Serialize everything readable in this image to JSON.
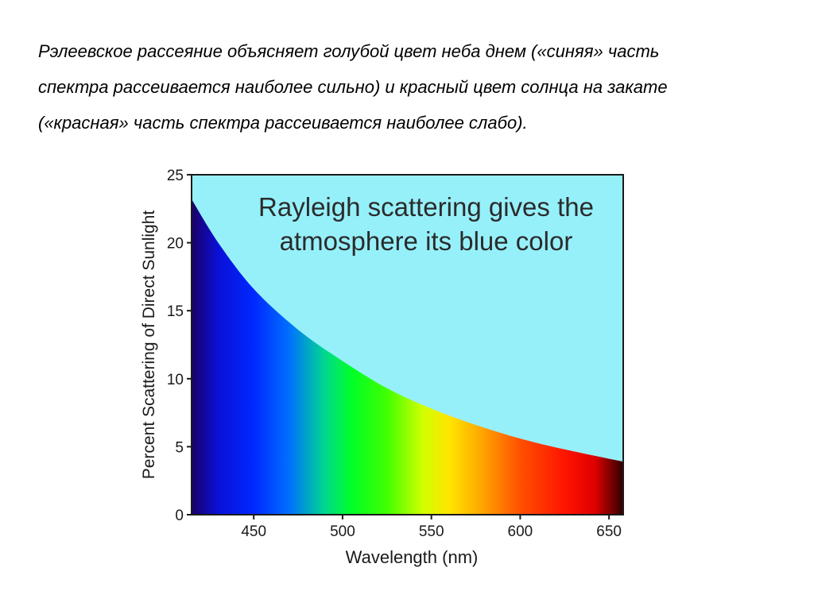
{
  "caption": {
    "lines": [
      "Рэлеевское рассеяние объясняет голубой цвет неба днем («синяя» часть",
      "спектра рассеивается наиболее сильно) и  красный цвет солнца на закате",
      "(«красная» часть спектра рассеивается наиболее слабо)."
    ]
  },
  "chart_data": {
    "type": "area",
    "title_lines": [
      "Rayleigh scattering gives the",
      "atmosphere its blue color"
    ],
    "xlabel": "Wavelength (nm)",
    "ylabel": "Percent Scattering of Direct Sunlight",
    "xlim": [
      415,
      658
    ],
    "ylim": [
      0,
      25
    ],
    "xticks": [
      450,
      500,
      550,
      600,
      650
    ],
    "yticks": [
      0,
      5,
      10,
      15,
      20,
      25
    ],
    "grid": false,
    "legend": "none",
    "series": [
      {
        "x": [
          415,
          430,
          450,
          475,
          500,
          525,
          550,
          575,
          600,
          625,
          658
        ],
        "y": [
          23.2,
          20.0,
          16.6,
          13.6,
          11.3,
          9.3,
          7.8,
          6.6,
          5.6,
          4.8,
          3.9
        ]
      }
    ],
    "colors": {
      "background": "#96f0fa",
      "spectrum": [
        {
          "nm": 415,
          "color": "#1a0066"
        },
        {
          "nm": 430,
          "color": "#0a10d8"
        },
        {
          "nm": 450,
          "color": "#0028ff"
        },
        {
          "nm": 470,
          "color": "#0070ff"
        },
        {
          "nm": 490,
          "color": "#00d890"
        },
        {
          "nm": 505,
          "color": "#00ff28"
        },
        {
          "nm": 525,
          "color": "#40ff00"
        },
        {
          "nm": 545,
          "color": "#d0ff00"
        },
        {
          "nm": 560,
          "color": "#ffe600"
        },
        {
          "nm": 580,
          "color": "#ffa000"
        },
        {
          "nm": 600,
          "color": "#ff5000"
        },
        {
          "nm": 625,
          "color": "#ff1400"
        },
        {
          "nm": 642,
          "color": "#e00000"
        },
        {
          "nm": 658,
          "color": "#300000"
        }
      ]
    }
  }
}
